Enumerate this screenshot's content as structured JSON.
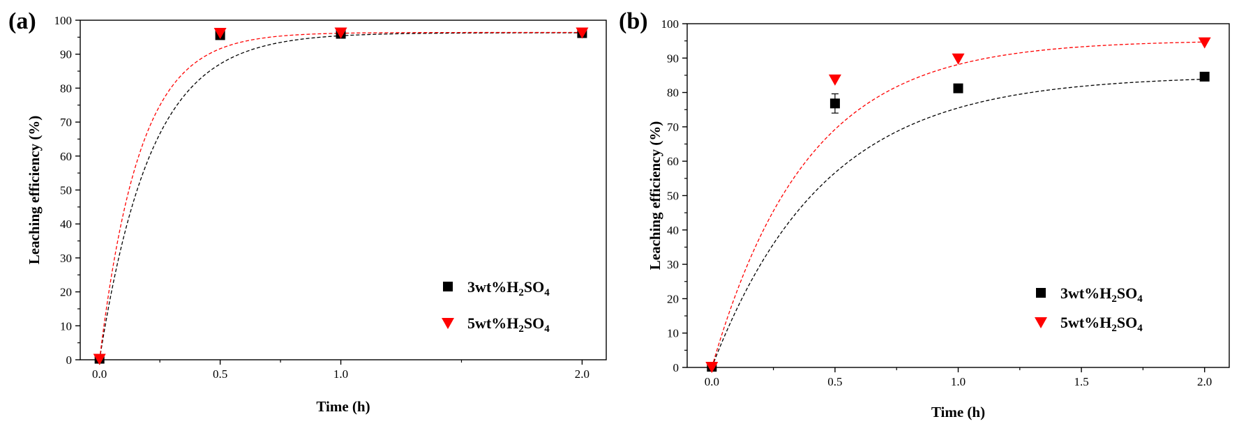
{
  "chart_data": [
    {
      "type": "scatter",
      "panel_label": "(a)",
      "xlabel": "Time (h)",
      "ylabel": "Leaching efficiency (%)",
      "xlim": [
        -0.08,
        2.1
      ],
      "ylim": [
        0,
        100
      ],
      "x_categories": [
        {
          "x": 0.0,
          "label": "0.0"
        },
        {
          "x": 0.5,
          "label": "0.5"
        },
        {
          "x": 1.0,
          "label": "1.0"
        },
        {
          "x": 2.0,
          "label": "2.0"
        }
      ],
      "y_ticks": [
        0,
        10,
        20,
        30,
        40,
        50,
        60,
        70,
        80,
        90,
        100
      ],
      "legend_position": "center-right",
      "series": [
        {
          "name": "3wt%H2SO4",
          "legend_main": "3wt%H",
          "legend_parts": [
            "2",
            "SO",
            "4"
          ],
          "marker": "square",
          "color": "#000000",
          "x": [
            0.0,
            0.5,
            1.0,
            2.0
          ],
          "values": [
            0.3,
            95.6,
            96.0,
            96.2
          ],
          "fit_asymptote": 96.3,
          "fit_rate": 4.7
        },
        {
          "name": "5wt%H2SO4",
          "legend_main": "5wt%H",
          "legend_parts": [
            "2",
            "SO",
            "4"
          ],
          "marker": "triangle-down",
          "color": "#ff0000",
          "x": [
            0.0,
            0.5,
            1.0,
            2.0
          ],
          "values": [
            0.3,
            96.3,
            96.4,
            96.4
          ],
          "fit_asymptote": 96.4,
          "fit_rate": 6.0
        }
      ]
    },
    {
      "type": "scatter",
      "panel_label": "(b)",
      "xlabel": "Time (h)",
      "ylabel": "Leaching efficiency (%)",
      "xlim": [
        -0.1,
        2.1
      ],
      "ylim": [
        0,
        100
      ],
      "x_categories": [
        {
          "x": 0.0,
          "label": "0.0"
        },
        {
          "x": 0.5,
          "label": "0.5"
        },
        {
          "x": 1.0,
          "label": "1.0"
        },
        {
          "x": 1.5,
          "label": "1.5"
        },
        {
          "x": 2.0,
          "label": "2.0"
        }
      ],
      "y_ticks": [
        0,
        10,
        20,
        30,
        40,
        50,
        60,
        70,
        80,
        90,
        100
      ],
      "legend_position": "center-right",
      "series": [
        {
          "name": "3wt%H2SO4",
          "legend_main": "3wt%H",
          "legend_parts": [
            "2",
            "SO",
            "4"
          ],
          "marker": "square",
          "color": "#000000",
          "x": [
            0.0,
            0.5,
            1.0,
            2.0
          ],
          "values": [
            0.2,
            76.8,
            81.2,
            84.6
          ],
          "error": [
            0.0,
            2.8,
            0.8,
            0.5
          ],
          "fit_asymptote": 84.9,
          "fit_rate": 2.2
        },
        {
          "name": "5wt%H2SO4",
          "legend_main": "5wt%H",
          "legend_parts": [
            "2",
            "SO",
            "4"
          ],
          "marker": "triangle-down",
          "color": "#ff0000",
          "x": [
            0.0,
            0.5,
            1.0,
            2.0
          ],
          "values": [
            0.2,
            83.8,
            89.9,
            94.6
          ],
          "fit_asymptote": 95.2,
          "fit_rate": 2.6
        }
      ]
    }
  ]
}
